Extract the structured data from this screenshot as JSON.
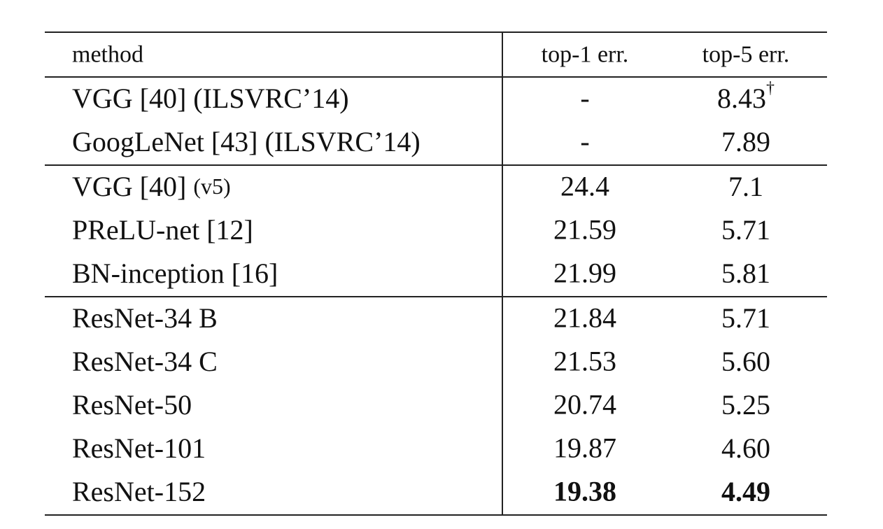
{
  "table": {
    "columns": [
      "method",
      "top-1 err.",
      "top-5 err."
    ],
    "groups": [
      [
        {
          "method": "VGG [40] (ILSVRC’14)",
          "top1": "-",
          "top5": "8.43",
          "top5_mark": "†"
        },
        {
          "method": "GoogLeNet [43] (ILSVRC’14)",
          "top1": "-",
          "top5": "7.89"
        }
      ],
      [
        {
          "method": "VGG [40]",
          "method_note": "(v5)",
          "top1": "24.4",
          "top5": "7.1"
        },
        {
          "method": "PReLU-net [12]",
          "top1": "21.59",
          "top5": "5.71"
        },
        {
          "method": "BN-inception [16]",
          "top1": "21.99",
          "top5": "5.81"
        }
      ],
      [
        {
          "method": "ResNet-34 B",
          "top1": "21.84",
          "top5": "5.71"
        },
        {
          "method": "ResNet-34 C",
          "top1": "21.53",
          "top5": "5.60"
        },
        {
          "method": "ResNet-50",
          "top1": "20.74",
          "top5": "5.25"
        },
        {
          "method": "ResNet-101",
          "top1": "19.87",
          "top5": "4.60"
        },
        {
          "method": "ResNet-152",
          "top1": "19.38",
          "top5": "4.49",
          "bold": true
        }
      ]
    ]
  }
}
